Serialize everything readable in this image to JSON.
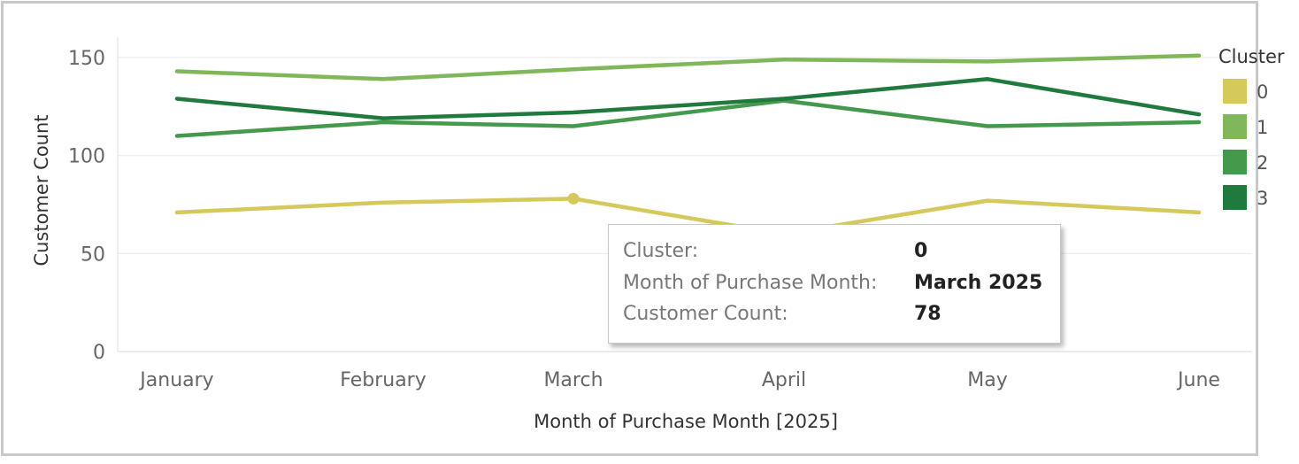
{
  "chart_data": {
    "type": "line",
    "xlabel": "Month of Purchase Month [2025]",
    "ylabel": "Customer Count",
    "categories": [
      "January",
      "February",
      "March",
      "April",
      "May",
      "June"
    ],
    "ylim": [
      0,
      160
    ],
    "yticks": [
      0,
      50,
      100,
      150
    ],
    "grid": true,
    "legend": {
      "title": "Cluster",
      "placement": "right"
    },
    "series": [
      {
        "name": "0",
        "color": "#d4c95a",
        "values": [
          71,
          76,
          78,
          60,
          77,
          71
        ]
      },
      {
        "name": "1",
        "color": "#80b75a",
        "values": [
          143,
          139,
          144,
          149,
          148,
          151
        ]
      },
      {
        "name": "2",
        "color": "#44994c",
        "values": [
          110,
          117,
          115,
          128,
          115,
          117
        ]
      },
      {
        "name": "3",
        "color": "#207a3e",
        "values": [
          129,
          119,
          122,
          129,
          139,
          121
        ]
      }
    ],
    "highlight": {
      "series": "0",
      "category_index": 2
    }
  },
  "tooltip": {
    "rows": [
      {
        "key": "Cluster:",
        "value": "0"
      },
      {
        "key": "Month of Purchase Month:",
        "value": "March 2025"
      },
      {
        "key": "Customer Count:",
        "value": "78"
      }
    ]
  }
}
